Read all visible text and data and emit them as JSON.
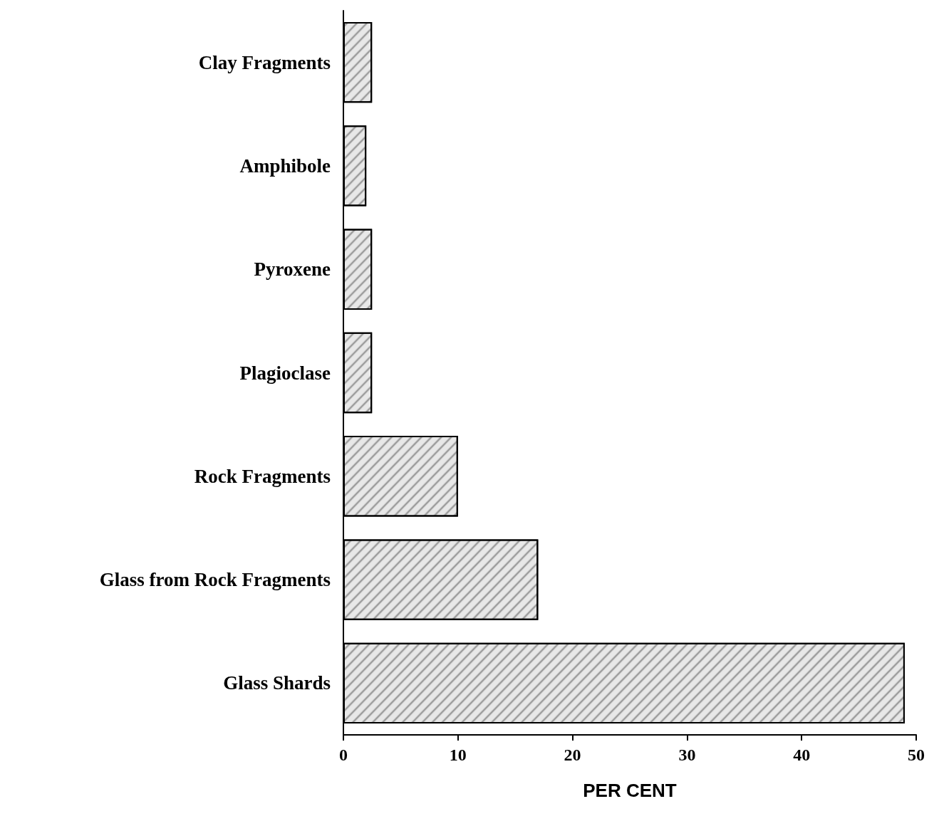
{
  "chart_data": {
    "type": "bar",
    "orientation": "horizontal",
    "categories": [
      "Clay Fragments",
      "Amphibole",
      "Pyroxene",
      "Plagioclase",
      "Rock Fragments",
      "Glass from Rock Fragments",
      "Glass Shards"
    ],
    "values": [
      2.5,
      2,
      2.5,
      2.5,
      10,
      17,
      49
    ],
    "color": "#e8e8e8",
    "xlabel": "PER CENT",
    "xlim": [
      0,
      50
    ],
    "xticks": [
      0,
      10,
      20,
      30,
      40,
      50
    ],
    "grid": false
  }
}
